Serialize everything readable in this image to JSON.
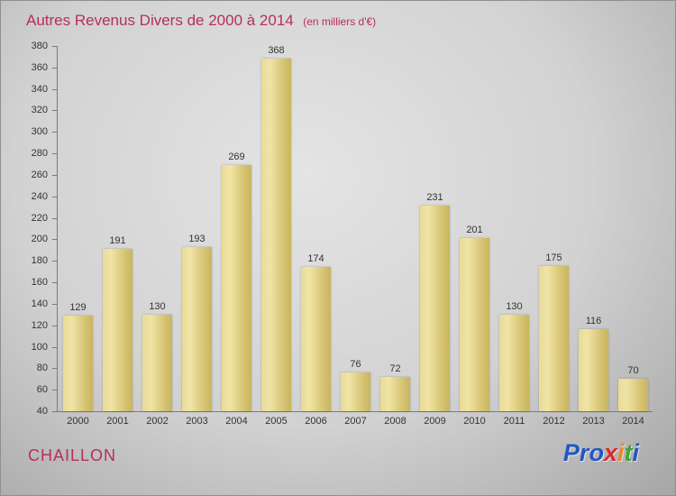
{
  "header": {
    "title": "Autres Revenus Divers de 2000 à 2014",
    "subtitle": "(en milliers d'€)"
  },
  "footer": {
    "commune": "CHAILLON",
    "logo_letters": [
      {
        "ch": "P",
        "color": "#2456c4"
      },
      {
        "ch": "r",
        "color": "#2456c4"
      },
      {
        "ch": "o",
        "color": "#2456c4"
      },
      {
        "ch": "x",
        "color": "#d92b2b"
      },
      {
        "ch": "i",
        "color": "#f0862a"
      },
      {
        "ch": "t",
        "color": "#3da53d"
      },
      {
        "ch": "i",
        "color": "#2456c4"
      }
    ]
  },
  "chart_data": {
    "type": "bar",
    "title": "Autres Revenus Divers de 2000 à 2014",
    "subtitle": "(en milliers d'€)",
    "categories": [
      "2000",
      "2001",
      "2002",
      "2003",
      "2004",
      "2005",
      "2006",
      "2007",
      "2008",
      "2009",
      "2010",
      "2011",
      "2012",
      "2013",
      "2014"
    ],
    "values": [
      129,
      191,
      130,
      193,
      269,
      368,
      174,
      76,
      72,
      231,
      201,
      130,
      175,
      116,
      70
    ],
    "xlabel": "",
    "ylabel": "",
    "ylim": [
      40,
      380
    ],
    "ytick_step": 20,
    "bar_color": "#d6c372",
    "grid": false,
    "legend": "none"
  }
}
